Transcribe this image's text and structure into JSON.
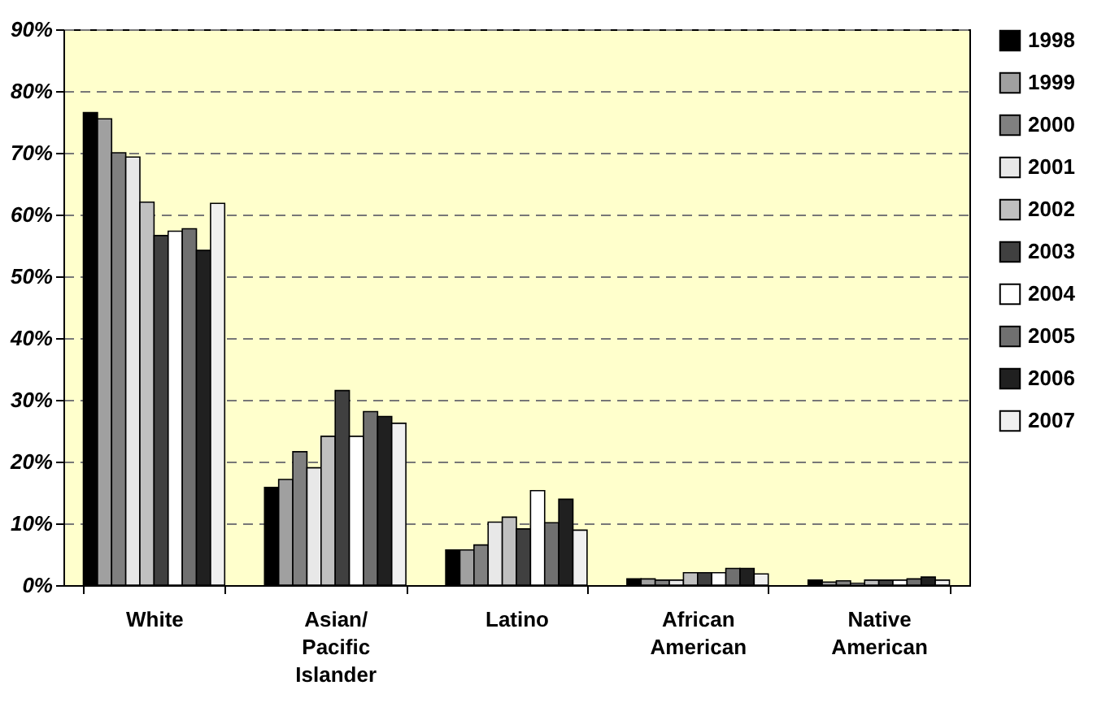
{
  "chart_data": {
    "type": "bar",
    "categories": [
      "White",
      "Asian/ Pacific Islander",
      "Latino",
      "African American",
      "Native American"
    ],
    "series": [
      {
        "name": "1998",
        "color": "#000000",
        "values": [
          76.5,
          15.8,
          5.7,
          1.0,
          0.8
        ]
      },
      {
        "name": "1999",
        "color": "#a0a0a0",
        "values": [
          75.5,
          17.1,
          5.7,
          1.0,
          0.5
        ]
      },
      {
        "name": "2000",
        "color": "#808080",
        "values": [
          70,
          21.6,
          6.5,
          0.8,
          0.7
        ]
      },
      {
        "name": "2001",
        "color": "#e8e8e8",
        "values": [
          69.3,
          19,
          10.2,
          0.8,
          0.3
        ]
      },
      {
        "name": "2002",
        "color": "#c0c0c0",
        "values": [
          62,
          24.1,
          11,
          2,
          0.8
        ]
      },
      {
        "name": "2003",
        "color": "#404040",
        "values": [
          56.6,
          31.5,
          9.1,
          2,
          0.8
        ]
      },
      {
        "name": "2004",
        "color": "#ffffff",
        "values": [
          57.3,
          24.1,
          15.3,
          2,
          0.8
        ]
      },
      {
        "name": "2005",
        "color": "#707070",
        "values": [
          57.7,
          28.1,
          10.1,
          2.7,
          1
        ]
      },
      {
        "name": "2006",
        "color": "#202020",
        "values": [
          54.2,
          27.3,
          13.9,
          2.7,
          1.3
        ]
      },
      {
        "name": "2007",
        "color": "#f0f0f0",
        "values": [
          61.8,
          26.2,
          8.9,
          1.8,
          0.8
        ]
      }
    ],
    "ylim": [
      0,
      90
    ],
    "yticks": [
      {
        "value": 0,
        "label": "0%"
      },
      {
        "value": 10,
        "label": "10%"
      },
      {
        "value": 20,
        "label": "20%"
      },
      {
        "value": 30,
        "label": "30%"
      },
      {
        "value": 40,
        "label": "40%"
      },
      {
        "value": 50,
        "label": "50%"
      },
      {
        "value": 60,
        "label": "60%"
      },
      {
        "value": 70,
        "label": "70%"
      },
      {
        "value": 80,
        "label": "80%"
      },
      {
        "value": 90,
        "label": "90%"
      }
    ],
    "grid": "y",
    "legend": "right"
  }
}
